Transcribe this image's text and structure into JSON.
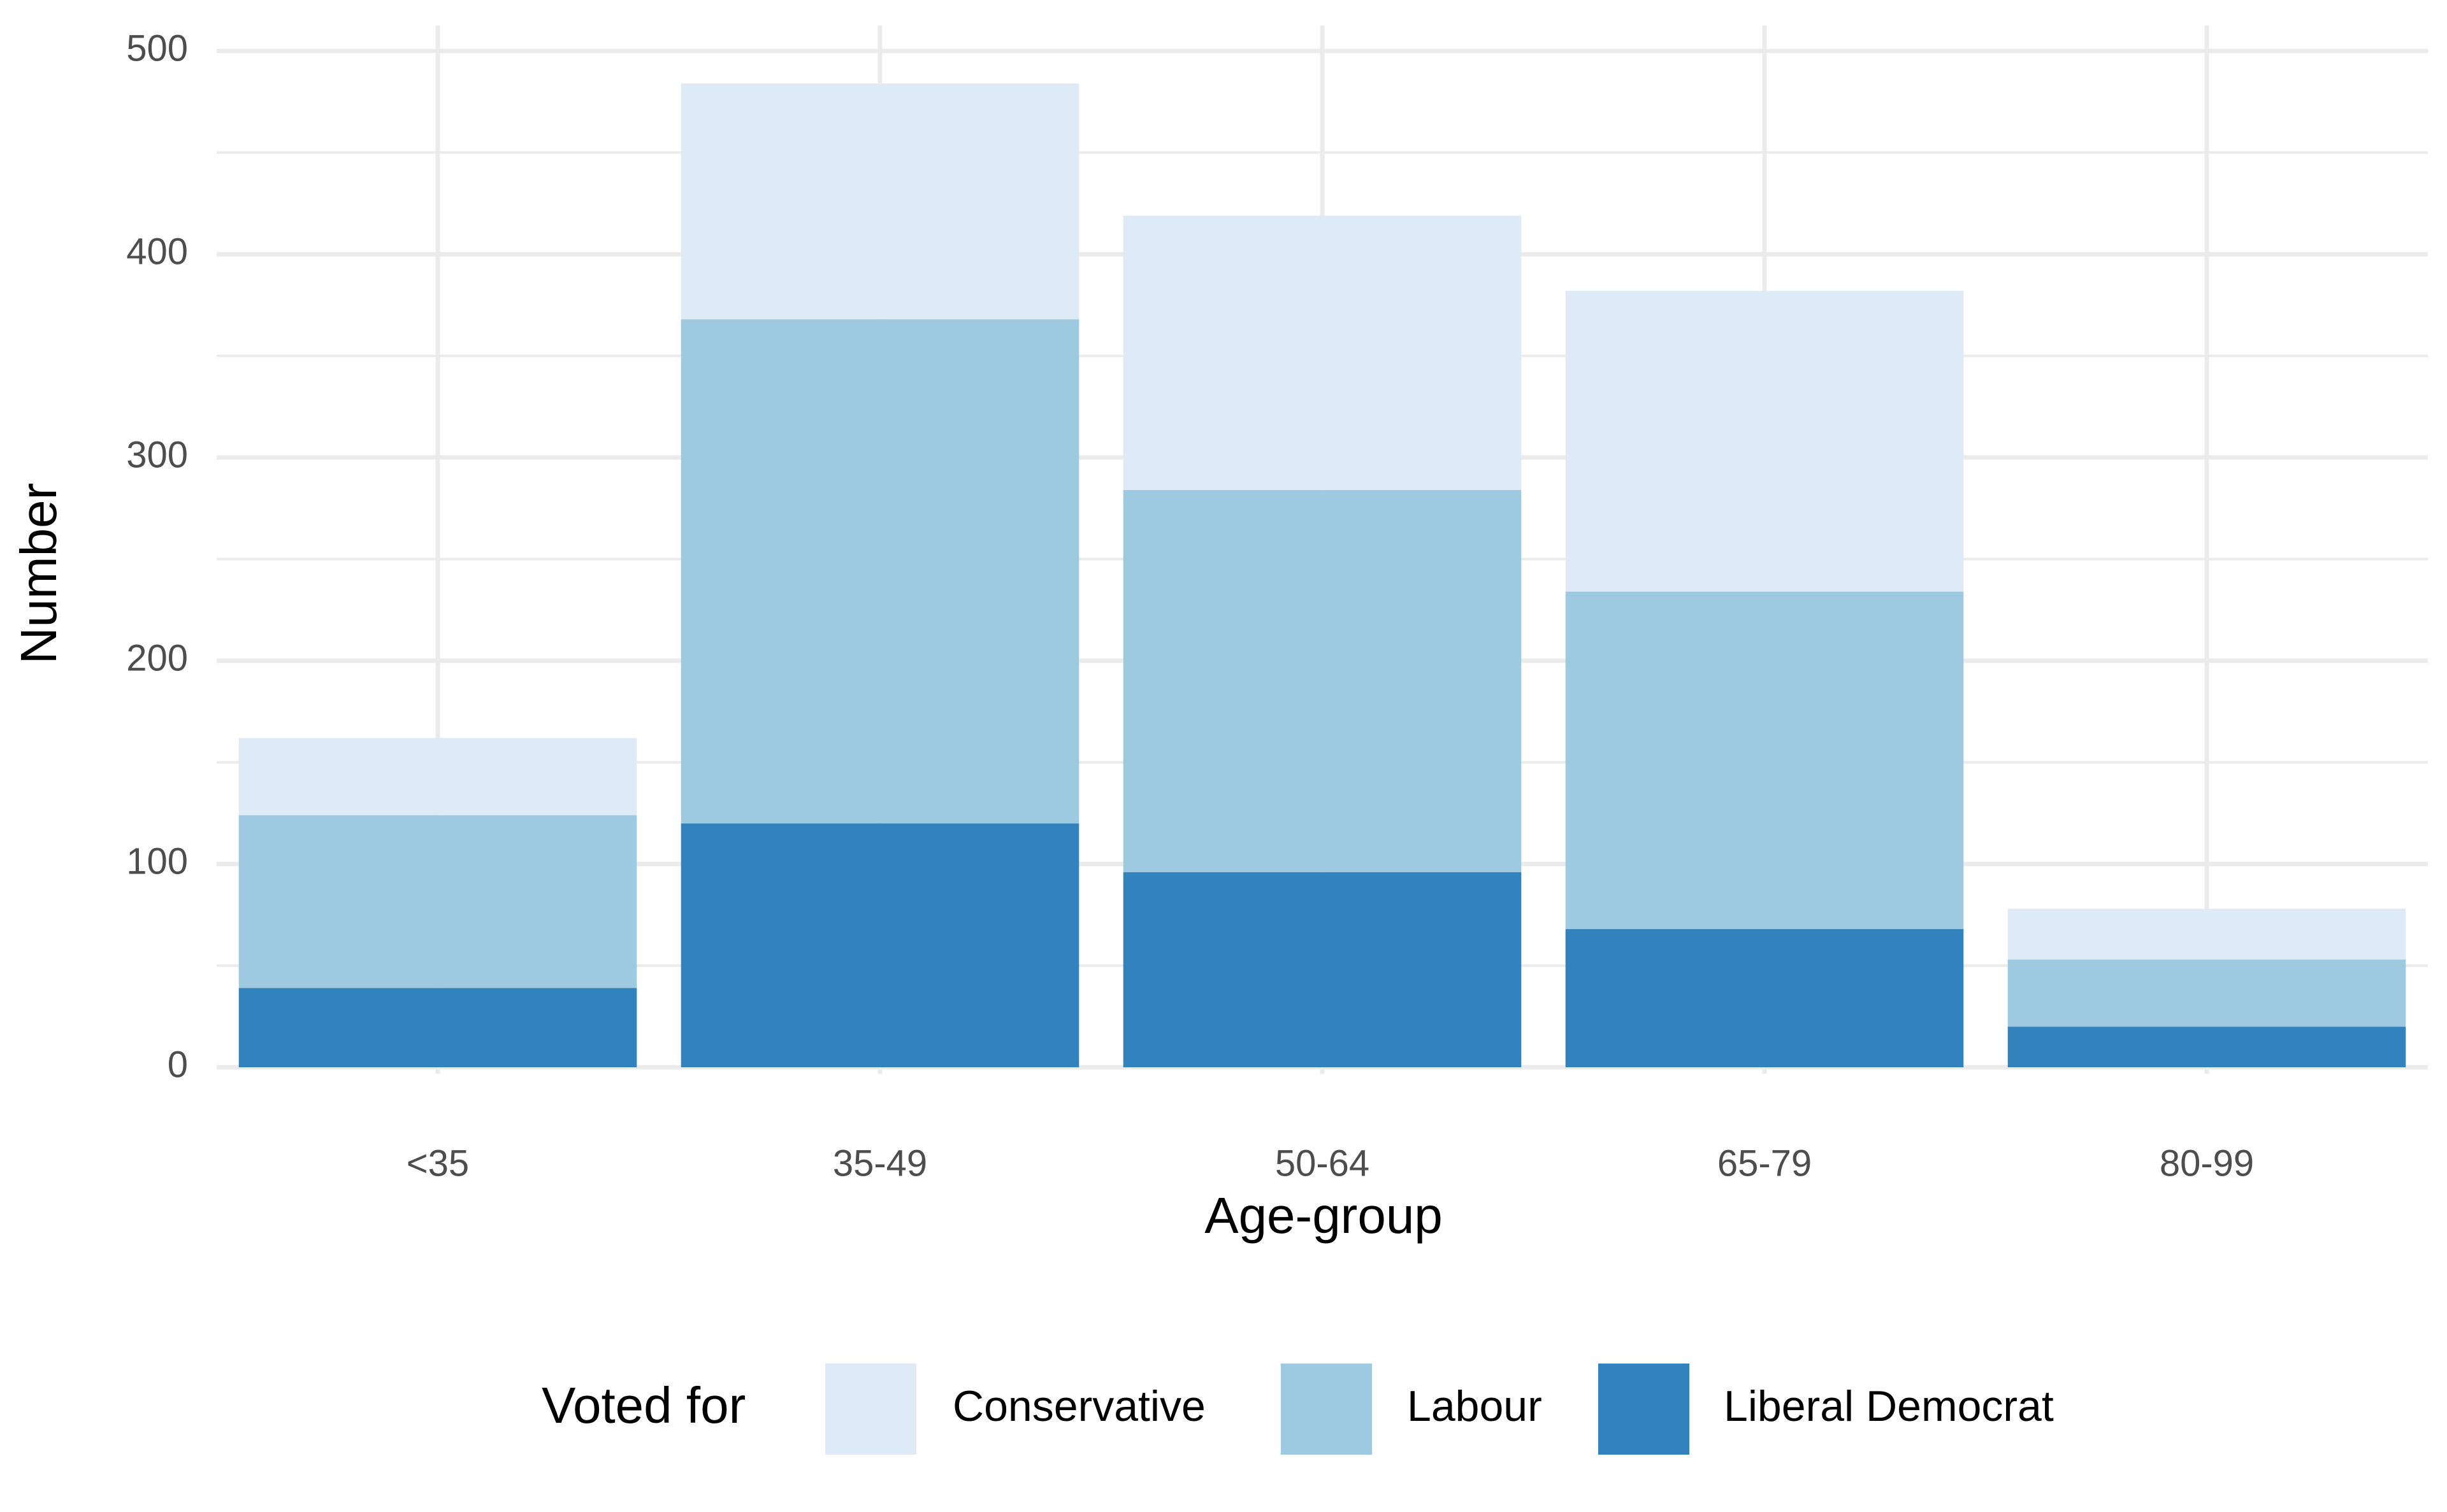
{
  "chart_data": {
    "type": "bar",
    "stacked": true,
    "categories": [
      "<35",
      "35-49",
      "50-64",
      "65-79",
      "80-99"
    ],
    "series": [
      {
        "name": "Liberal Democrat",
        "values": [
          39,
          120,
          96,
          68,
          20
        ],
        "color": "#3282bd"
      },
      {
        "name": "Labour",
        "values": [
          85,
          248,
          188,
          166,
          33
        ],
        "color": "#9ecae1"
      },
      {
        "name": "Conservative",
        "values": [
          38,
          116,
          135,
          148,
          25
        ],
        "color": "#deebf7"
      }
    ],
    "xlabel": "Age-group",
    "ylabel": "Number",
    "ylim": [
      0,
      500
    ],
    "yticks": [
      "0",
      "100",
      "200",
      "300",
      "400",
      "500"
    ],
    "grid": true,
    "legend": {
      "title": "Voted for",
      "position": "bottom",
      "items": [
        {
          "label": "Conservative",
          "color": "#deebf7"
        },
        {
          "label": "Labour",
          "color": "#9ecae1"
        },
        {
          "label": "Liberal Democrat",
          "color": "#3282bd"
        }
      ]
    }
  }
}
